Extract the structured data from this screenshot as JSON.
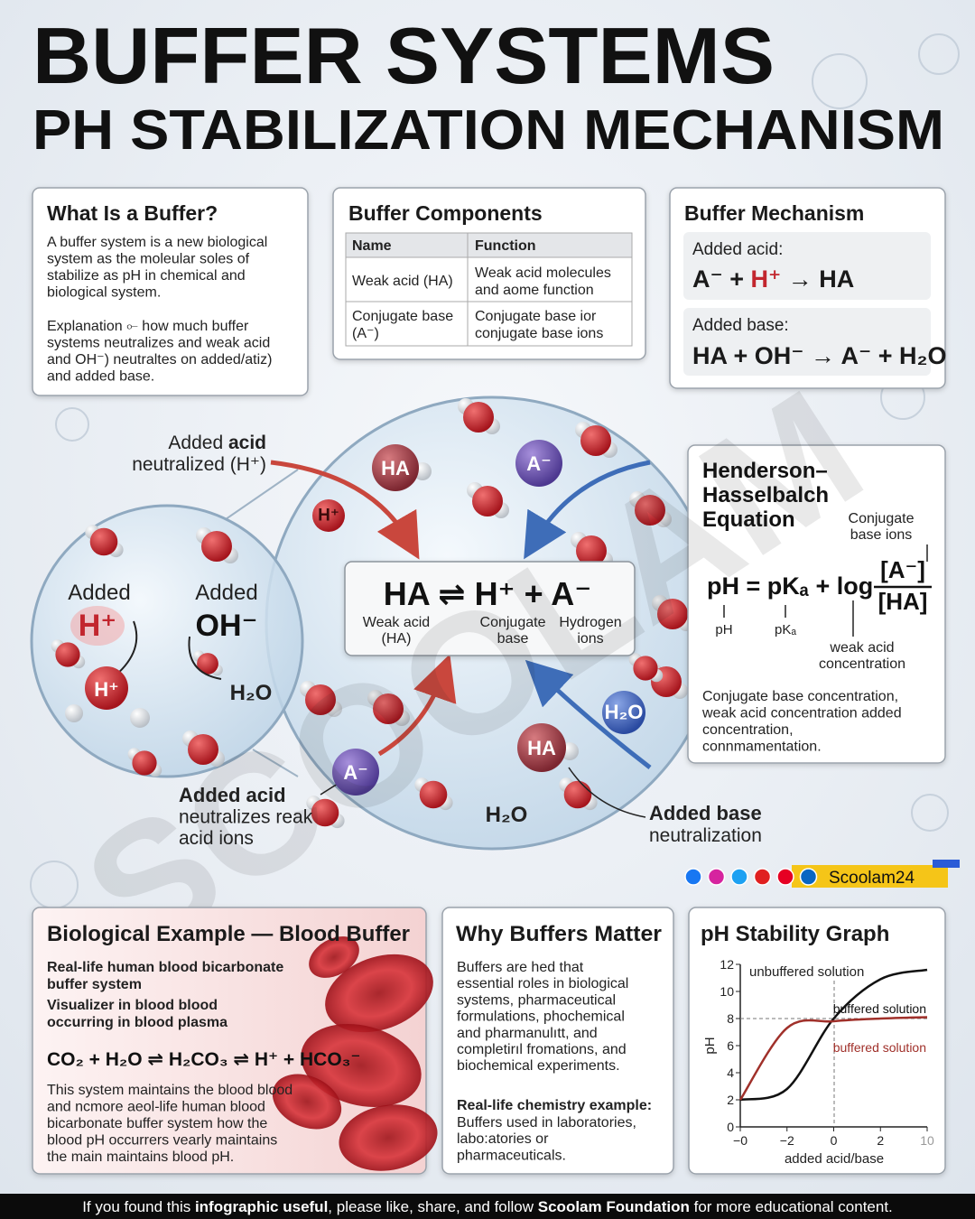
{
  "title": {
    "line1": "BUFFER SYSTEMS",
    "line2": "PH STABILIZATION MECHANISM"
  },
  "what_is": {
    "heading": "What Is a Buffer?",
    "para1": [
      "A buffer system is a new biological",
      "system as the moleular soles of",
      "stabilize as pH in chemical and",
      "biological system."
    ],
    "para2": [
      "Explanation ⟜ how much buffer",
      "systems neutralizes and weak acid",
      "and OH⁻) neutraltes on added/atiz)",
      "and added base."
    ]
  },
  "components": {
    "heading": "Buffer Components",
    "table": {
      "header": [
        "Name",
        "Function"
      ],
      "rows": [
        [
          [
            "Weak acid (HA)"
          ],
          [
            "Weak acid molecules",
            "and aome function"
          ]
        ],
        [
          [
            "Conjugate base",
            "(A⁻)"
          ],
          [
            "Conjugate base ior",
            "conjugate base ions"
          ]
        ]
      ]
    }
  },
  "mechanism": {
    "heading": "Buffer Mechanism",
    "acid_label": "Added acid:",
    "acid_eq": [
      "A⁻ + ",
      "H⁺",
      " → HA"
    ],
    "base_label": "Added base:",
    "base_eq": "HA + OH⁻ → A⁻ + H₂O"
  },
  "diagram": {
    "center_eq": "HA ⇌ H⁺ + A⁻",
    "center_labels": [
      [
        "Weak acid",
        "(HA)"
      ],
      [
        "Conjugate",
        "base"
      ],
      [
        "Hydrogen",
        "ions"
      ]
    ],
    "top_left": {
      "line1": [
        "Added ",
        "acid"
      ],
      "line2": "neutralized (H⁺)"
    },
    "bottom_left": [
      "Added acid",
      "neutralizes reak",
      "acid ions"
    ],
    "bottom_right": [
      "Added base",
      "neutralization"
    ],
    "water": "H₂O",
    "molecules": [
      "HA",
      "A⁻",
      "H⁺",
      "H₂O",
      "HA",
      "A⁻"
    ],
    "zoom": {
      "added_h": [
        "Added",
        "H⁺"
      ],
      "added_oh": [
        "Added",
        "OH⁻"
      ],
      "h2o": "H₂O",
      "h_ion": "H⁺"
    }
  },
  "hh": {
    "heading": [
      "Henderson–",
      "Hasselbalch",
      "Equation"
    ],
    "conj_label": [
      "Conjugate",
      "base ions"
    ],
    "eq_left": "pH = pKₐ + log",
    "numerator": "[A⁻]",
    "denominator": "[HA]",
    "sub_ph": "pH",
    "sub_pka": "pKₐ",
    "weak_label": [
      "weak acid",
      "concentration"
    ],
    "note": [
      "Conjugate base concentration,",
      "weak acid concentration added",
      "concentration,",
      "connmamentation."
    ]
  },
  "social": {
    "handle": "Scoolam24"
  },
  "watermark": "SCOOLAM",
  "blood": {
    "heading": "Biological Example — Blood Buffer",
    "sub1": [
      "Real-life human blood bicarbonate",
      "buffer system"
    ],
    "sub2": [
      "Visualizer in blood blood",
      "occurring in blood plasma"
    ],
    "equation": "CO₂ + H₂O ⇌ H₂CO₃ ⇌ H⁺ + HCO₃⁻",
    "para": [
      "This system maintains the blood blood",
      "and ncmore aeol-life human blood",
      "bicarbonate buffer system how the",
      "blood pH occurrers vearly maintains",
      "the main maintains blood pH."
    ]
  },
  "why": {
    "heading": "Why Buffers Matter",
    "para": [
      "Buffers are hed that",
      "essential roles in biological",
      "systems, pharmaceutical",
      "formulations, phochemical",
      "and pharmanulıtt, and",
      "completirıl fromations, and",
      "biochemical experiments."
    ],
    "sub": "Real-life chemistry example:",
    "para2": [
      "Buffers used in laboratories,",
      "labo:atories or",
      "pharmaceuticals."
    ]
  },
  "chart_data": {
    "type": "line",
    "title": "pH Stability Graph",
    "categories": [
      "−0",
      "−2",
      "0",
      "2",
      "10"
    ],
    "series": [
      {
        "name": "buffered solution",
        "color": "#111111",
        "values": [
          2,
          2.8,
          8,
          10.9,
          11.6
        ]
      },
      {
        "name": "buffered solution",
        "color": "#a0302a",
        "values": [
          2,
          7.3,
          7.8,
          8,
          8.1
        ]
      }
    ],
    "ylim": [
      0,
      12
    ],
    "yticks": [
      0,
      2,
      4,
      6,
      8,
      10,
      12
    ],
    "ylabel": "pH",
    "xlabel": "added acid/base",
    "annotation": "unbuffered solution",
    "reference_y": 8
  },
  "footer": [
    "If you found this ",
    "infographic useful",
    ", please like, share, and follow ",
    "Scoolam Foundation",
    " for more educational content."
  ]
}
